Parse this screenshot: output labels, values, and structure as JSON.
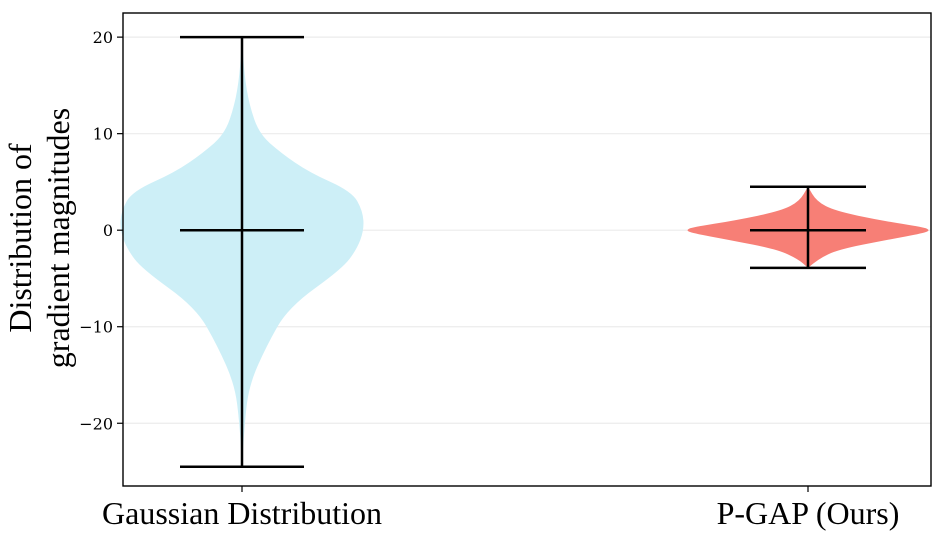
{
  "chart_data": {
    "type": "violin",
    "ylabel_lines": [
      "Distribution of",
      "gradient magnitudes"
    ],
    "categories": [
      "Gaussian Distribution",
      "P-GAP (Ours)"
    ],
    "yticks": [
      -20,
      -10,
      0,
      10,
      20
    ],
    "ylim": [
      -26.5,
      22.5
    ],
    "grid": true,
    "series": [
      {
        "category": "Gaussian Distribution",
        "color": "#cdeff7",
        "min": -24.5,
        "median": 0,
        "max": 20,
        "density_profile": [
          [
            -24.5,
            0.0
          ],
          [
            -20,
            0.02
          ],
          [
            -16,
            0.06
          ],
          [
            -12,
            0.2
          ],
          [
            -8,
            0.38
          ],
          [
            -4,
            0.82
          ],
          [
            -2,
            0.94
          ],
          [
            0,
            1.0
          ],
          [
            2,
            0.99
          ],
          [
            4,
            0.9
          ],
          [
            6,
            0.55
          ],
          [
            8,
            0.32
          ],
          [
            10,
            0.14
          ],
          [
            13,
            0.06
          ],
          [
            16,
            0.02
          ],
          [
            20,
            0.0
          ]
        ]
      },
      {
        "category": "P-GAP (Ours)",
        "color": "#f77f76",
        "min": -3.9,
        "median": 0,
        "max": 4.5,
        "density_profile": [
          [
            -3.9,
            0.0
          ],
          [
            -3,
            0.08
          ],
          [
            -2,
            0.25
          ],
          [
            -1,
            0.65
          ],
          [
            -0.3,
            0.95
          ],
          [
            0,
            1.0
          ],
          [
            0.3,
            0.95
          ],
          [
            1,
            0.6
          ],
          [
            2,
            0.22
          ],
          [
            3,
            0.07
          ],
          [
            4.5,
            0.0
          ]
        ]
      }
    ]
  },
  "colors": {
    "whisker": "#000000",
    "grid": "#ebebeb",
    "frame": "#000000"
  }
}
